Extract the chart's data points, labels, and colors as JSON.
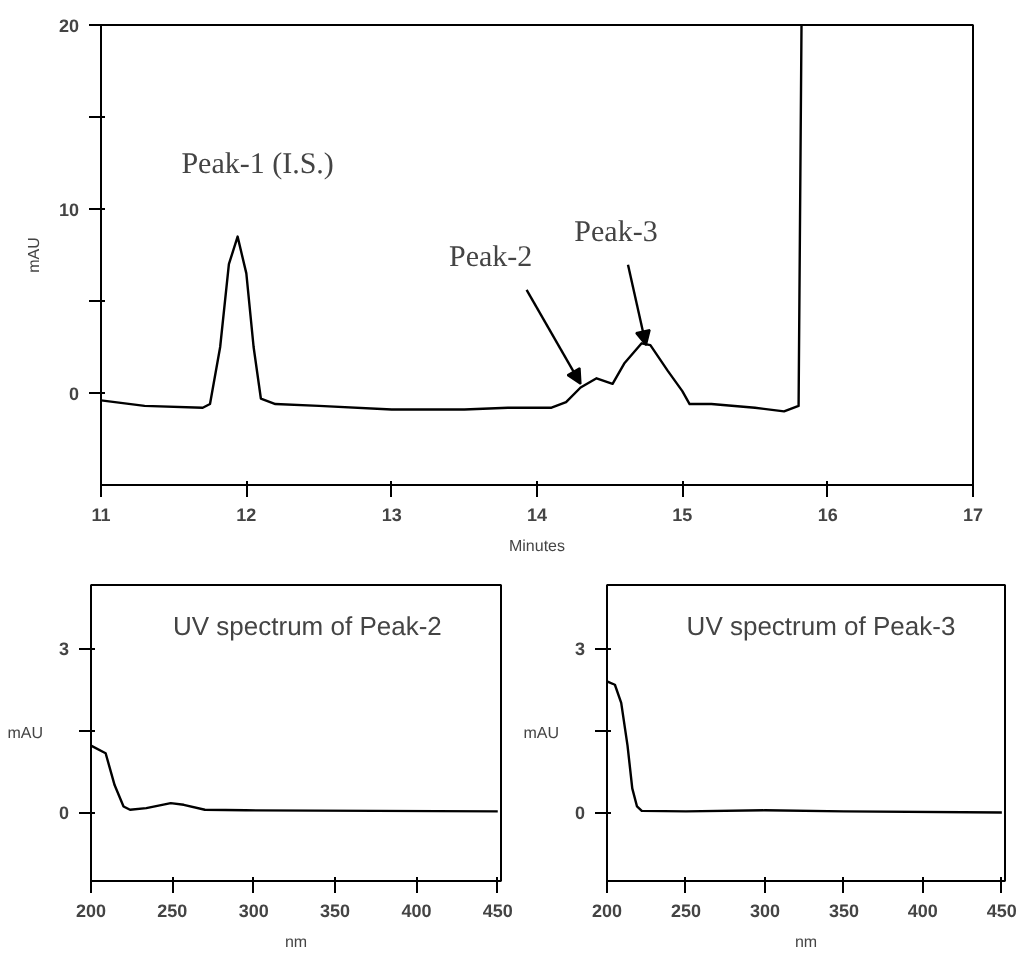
{
  "chart_data": [
    {
      "type": "line",
      "xlabel": "Minutes",
      "ylabel": "mAU",
      "xlim": [
        11,
        17
      ],
      "ylim": [
        -5,
        20
      ],
      "xticks": [
        11,
        12,
        13,
        14,
        15,
        16,
        17
      ],
      "yticks": [
        0,
        {
          "value": 5,
          "label": null
        },
        10,
        {
          "value": 15,
          "label": null
        },
        20
      ],
      "grid": false,
      "x": [
        11.0,
        11.3,
        11.7,
        11.75,
        11.82,
        11.88,
        11.94,
        12.0,
        12.05,
        12.1,
        12.2,
        12.5,
        13.0,
        13.5,
        13.8,
        14.1,
        14.2,
        14.3,
        14.41,
        14.52,
        14.6,
        14.72,
        14.78,
        14.9,
        15.0,
        15.05,
        15.2,
        15.5,
        15.7,
        15.8,
        15.82
      ],
      "series": [
        {
          "color": "#000000",
          "values": [
            -0.4,
            -0.7,
            -0.8,
            -0.6,
            2.5,
            7.0,
            8.5,
            6.5,
            2.5,
            -0.3,
            -0.6,
            -0.7,
            -0.9,
            -0.9,
            -0.8,
            -0.8,
            -0.5,
            0.3,
            0.8,
            0.5,
            1.6,
            2.7,
            2.6,
            1.2,
            0.1,
            -0.6,
            -0.6,
            -0.8,
            -1.0,
            -0.7,
            20
          ]
        }
      ],
      "annotations": [
        {
          "text": "Peak-1 (I.S.)",
          "x": 11.94,
          "y": 8.5
        },
        {
          "text": "Peak-2",
          "x": 14.3,
          "y": 0.5
        },
        {
          "text": "Peak-3",
          "x": 14.75,
          "y": 2.6
        }
      ]
    },
    {
      "type": "line",
      "title": "UV spectrum of Peak-2",
      "xlabel": "nm",
      "ylabel": "mAU",
      "xlim": [
        200,
        452
      ],
      "ylim": [
        -1.25,
        4.15
      ],
      "xticks": [
        200,
        250,
        300,
        350,
        400,
        450
      ],
      "yticks": [
        0,
        {
          "value": 1.5,
          "label": null
        },
        3
      ],
      "grid": false,
      "x": [
        200,
        209,
        214.5,
        220,
        224,
        234,
        249,
        257,
        270,
        295,
        450
      ],
      "series": [
        {
          "color": "#000000",
          "values": [
            1.22,
            1.08,
            0.5,
            0.11,
            0.05,
            0.08,
            0.17,
            0.14,
            0.05,
            0.04,
            0.02
          ]
        }
      ]
    },
    {
      "type": "line",
      "title": "UV spectrum of Peak-3",
      "xlabel": "nm",
      "ylabel": "mAU",
      "xlim": [
        200,
        452
      ],
      "ylim": [
        -1.25,
        4.15
      ],
      "xticks": [
        200,
        250,
        300,
        350,
        400,
        450
      ],
      "yticks": [
        0,
        {
          "value": 1.5,
          "label": null
        },
        3
      ],
      "grid": false,
      "x": [
        200,
        205,
        209,
        213,
        216,
        219,
        222,
        250,
        300,
        350,
        450
      ],
      "series": [
        {
          "color": "#000000",
          "values": [
            2.39,
            2.33,
            2.0,
            1.22,
            0.44,
            0.11,
            0.03,
            0.02,
            0.04,
            0.02,
            0.0
          ]
        }
      ]
    }
  ]
}
